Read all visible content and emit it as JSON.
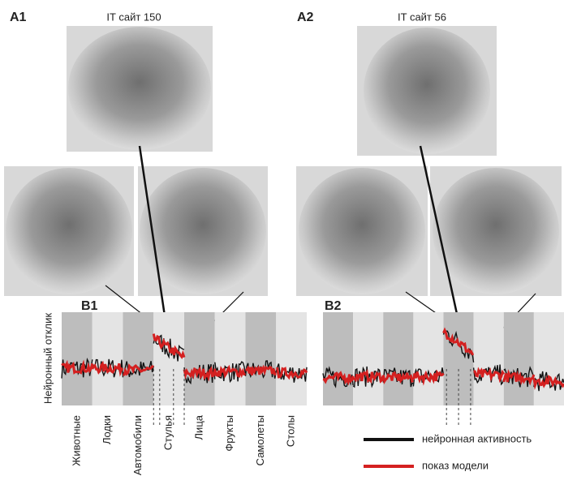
{
  "panels": {
    "a1": {
      "label": "A1",
      "title": "IT сайт 150"
    },
    "a2": {
      "label": "A2",
      "title": "IT сайт 56"
    },
    "b1": {
      "label": "B1",
      "levels": [
        0.4,
        0.4,
        0.38,
        0.72,
        0.35,
        0.36,
        0.37,
        0.35
      ]
    },
    "b2": {
      "label": "B2",
      "levels": [
        0.3,
        0.31,
        0.3,
        0.31,
        0.8,
        0.33,
        0.3,
        0.26
      ]
    }
  },
  "y_label": "Нейронный отклик",
  "categories": [
    "Животные",
    "Лодки",
    "Автомобили",
    "Стулья",
    "Лица",
    "Фрукты",
    "Самолеты",
    "Столы"
  ],
  "legend": [
    {
      "name": "нейронная активность",
      "color": "#111111"
    },
    {
      "name": "показ модели",
      "color": "#d42020"
    }
  ]
}
